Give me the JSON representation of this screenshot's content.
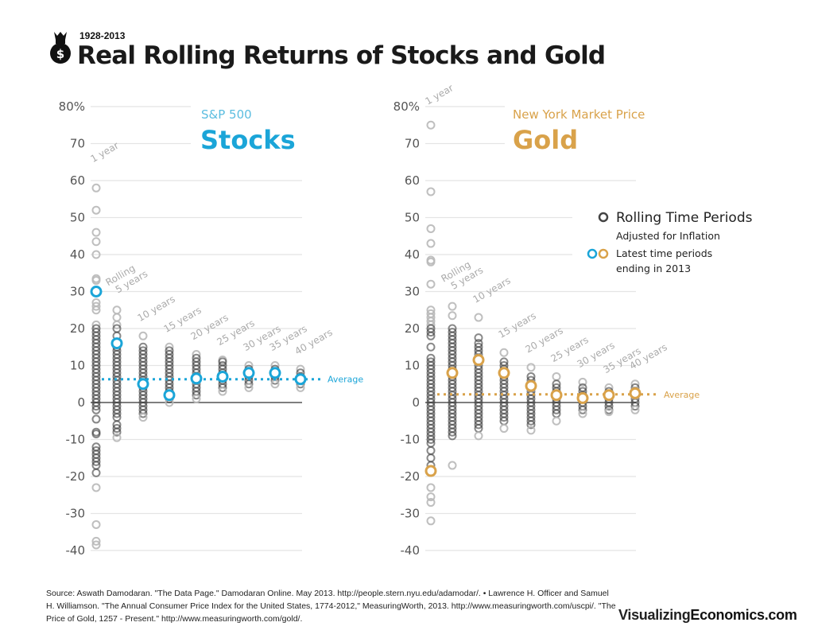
{
  "header": {
    "subtitle": "1928-2013",
    "title": "Real Rolling Returns of Stocks and Gold",
    "icon": "money-bag-icon"
  },
  "legend": {
    "rolling_title": "Rolling Time Periods",
    "rolling_sub": "Adjusted for Inflation",
    "latest_line1": "Latest time periods",
    "latest_line2": "ending in 2013"
  },
  "footer": {
    "source": "Source: Aswath Damodaran. \"The Data Page.\" Damodaran Online. May 2013. http://people.stern.nyu.edu/adamodar/. • Lawrence H. Officer and Samuel H. Williamson. \"The Annual Consumer Price Index for the United States, 1774-2012,\" MeasuringWorth, 2013. http://www.measuringworth.com/uscpi/. \"The Price of Gold, 1257 - Present.\" http://www.measuringworth.com/gold/.",
    "brand_a": "Visualizing",
    "brand_b": "Economics.com"
  },
  "chart_data": [
    {
      "type": "scatter",
      "subtitle": "S&P 500",
      "title": "Stocks",
      "accent": "#1ba5d8",
      "ylim": [
        -40,
        80
      ],
      "yticks": [
        "80%",
        "70",
        "60",
        "50",
        "40",
        "30",
        "20",
        "10",
        "0",
        "-10",
        "-20",
        "-30",
        "-40"
      ],
      "ytick_values": [
        80,
        70,
        60,
        50,
        40,
        30,
        20,
        10,
        0,
        -10,
        -20,
        -30,
        -40
      ],
      "grid": true,
      "average_label": "Average",
      "average": 6.3,
      "categories": [
        "1 year",
        "Rolling 5 years",
        "10 years",
        "15 years",
        "20 years",
        "25 years",
        "30 years",
        "35 years",
        "40 years"
      ],
      "points": [
        [
          58,
          52,
          46,
          43.5,
          40,
          33.5,
          33,
          27,
          26,
          25,
          21,
          20,
          19,
          18,
          17,
          16,
          15,
          14,
          13,
          12,
          11,
          10,
          9,
          8,
          7,
          6,
          5,
          4,
          3,
          2,
          1,
          0,
          -1,
          -2,
          -4.5,
          -8,
          -8.5,
          -12,
          -13,
          -14,
          -15,
          -16,
          -17,
          -19,
          -23,
          -33,
          -37.5,
          -38.5
        ],
        [
          25,
          23,
          21,
          20,
          18,
          15,
          14,
          13,
          12,
          11,
          10,
          9,
          8,
          7,
          6,
          5,
          4,
          3,
          2,
          1,
          0,
          -1,
          -2,
          -3,
          -4,
          -6,
          -7,
          -8,
          -9.5
        ],
        [
          18,
          15,
          14,
          13,
          12,
          11,
          10,
          9,
          8,
          7,
          6,
          4,
          3,
          2,
          1,
          0,
          -1,
          -2,
          -3,
          -4
        ],
        [
          15,
          14,
          13,
          12,
          11,
          10,
          9,
          8,
          7,
          6,
          5,
          4,
          3,
          1,
          0
        ],
        [
          13,
          12,
          11,
          10,
          9,
          8,
          7,
          5,
          4,
          3,
          2,
          1
        ],
        [
          11.5,
          11,
          10,
          9,
          8,
          6,
          5,
          4,
          3
        ],
        [
          10,
          9,
          7,
          6,
          5,
          4
        ],
        [
          10,
          9,
          7,
          6,
          5
        ],
        [
          9,
          8,
          7,
          5,
          4
        ]
      ],
      "latest_2013": [
        30,
        16,
        5,
        2,
        6.5,
        7,
        8,
        8,
        6.3
      ]
    },
    {
      "type": "scatter",
      "subtitle": "New York Market Price",
      "title": "Gold",
      "accent": "#d9a24a",
      "ylim": [
        -40,
        80
      ],
      "yticks": [
        "80%",
        "70",
        "60",
        "50",
        "40",
        "30",
        "20",
        "10",
        "0",
        "-10",
        "-20",
        "-30",
        "-40"
      ],
      "ytick_values": [
        80,
        70,
        60,
        50,
        40,
        30,
        20,
        10,
        0,
        -10,
        -20,
        -30,
        -40
      ],
      "grid": true,
      "average_label": "Average",
      "average": 2.2,
      "categories": [
        "1 year",
        "Rolling 5 years",
        "10 years",
        "15 years",
        "20 years",
        "25 years",
        "30 years",
        "35 years",
        "40 years"
      ],
      "points": [
        [
          75,
          57,
          47,
          43,
          38.5,
          38,
          32,
          25,
          24,
          23,
          22,
          21,
          20,
          19,
          18,
          15,
          12,
          11,
          10,
          9,
          8,
          7,
          6,
          5,
          4,
          3,
          2,
          1,
          0,
          -1,
          -2,
          -3,
          -4,
          -5,
          -6,
          -7,
          -8,
          -9,
          -10,
          -11,
          -13,
          -15,
          -17,
          -23,
          -25.5,
          -27,
          -32
        ],
        [
          26,
          23.5,
          20,
          19,
          18,
          17,
          16,
          15,
          14,
          13,
          12,
          11,
          10,
          9,
          7,
          6,
          5,
          4,
          3,
          2,
          1,
          0,
          -1,
          -2,
          -3,
          -4,
          -5,
          -6,
          -7,
          -8,
          -9,
          -17
        ],
        [
          23,
          17.5,
          16,
          15,
          14,
          13,
          12,
          10,
          9,
          8,
          7,
          6,
          5,
          4,
          3,
          2,
          1,
          0,
          -1,
          -2,
          -3,
          -4,
          -5,
          -6,
          -7,
          -9
        ],
        [
          13.5,
          11,
          10,
          9,
          7,
          6,
          5,
          4,
          3,
          2,
          1,
          0,
          -1,
          -2,
          -3,
          -4,
          -5,
          -7
        ],
        [
          9.5,
          7,
          6,
          5,
          3,
          2,
          1,
          0,
          -1,
          -2,
          -3,
          -4,
          -5,
          -6,
          -7.5
        ],
        [
          7,
          5,
          4,
          3,
          1,
          0,
          -1,
          -2,
          -3,
          -5
        ],
        [
          5.5,
          4,
          3,
          2,
          0,
          -1,
          -2,
          -3
        ],
        [
          4,
          3,
          1,
          0,
          -1,
          -2,
          -2.5
        ],
        [
          5,
          4,
          3,
          1,
          0,
          -1,
          -2
        ]
      ],
      "latest_2013": [
        -18.5,
        8,
        11.5,
        8,
        4.5,
        2,
        1.2,
        2,
        2.5
      ]
    }
  ]
}
